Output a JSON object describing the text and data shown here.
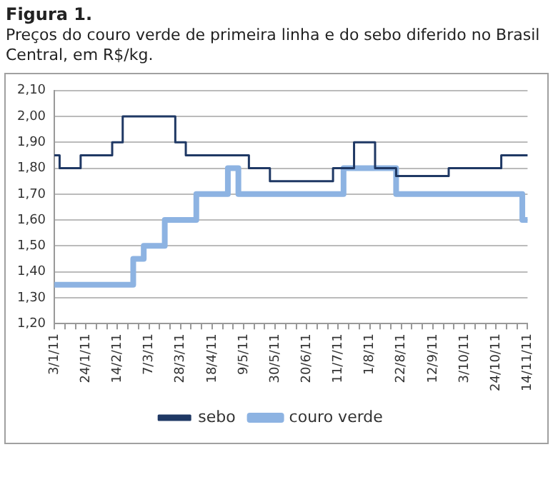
{
  "chart_data": {
    "type": "step",
    "title": "Figura 1.",
    "subtitle": "Preços do couro verde de primeira linha e do sebo diferido no Brasil Central, em R$/kg.",
    "categories": [
      "3/1/11",
      null,
      null,
      "24/1/11",
      null,
      null,
      "14/2/11",
      null,
      null,
      "7/3/11",
      null,
      null,
      "28/3/11",
      null,
      null,
      "18/4/11",
      null,
      null,
      "9/5/11",
      null,
      null,
      "30/5/11",
      null,
      null,
      "20/6/11",
      null,
      null,
      "11/7/11",
      null,
      null,
      "1/8/11",
      null,
      null,
      "22/8/11",
      null,
      null,
      "12/9/11",
      null,
      null,
      "3/10/11",
      null,
      null,
      "24/10/11",
      null,
      null,
      "14/11/11"
    ],
    "series": [
      {
        "name": "sebo",
        "color": "#1f3864",
        "values": [
          1.85,
          1.8,
          1.8,
          1.85,
          1.85,
          1.85,
          1.9,
          2.0,
          2.0,
          2.0,
          2.0,
          2.0,
          1.9,
          1.85,
          1.85,
          1.85,
          1.85,
          1.85,
          1.85,
          1.8,
          1.8,
          1.75,
          1.75,
          1.75,
          1.75,
          1.75,
          1.75,
          1.8,
          1.8,
          1.9,
          1.9,
          1.8,
          1.8,
          1.77,
          1.77,
          1.77,
          1.77,
          1.77,
          1.8,
          1.8,
          1.8,
          1.8,
          1.8,
          1.85,
          1.85,
          1.85
        ]
      },
      {
        "name": "couro verde",
        "color": "#8db3e2",
        "values": [
          1.35,
          1.35,
          1.35,
          1.35,
          1.35,
          1.35,
          1.35,
          1.35,
          1.45,
          1.5,
          1.5,
          1.6,
          1.6,
          1.6,
          1.7,
          1.7,
          1.7,
          1.8,
          1.7,
          1.7,
          1.7,
          1.7,
          1.7,
          1.7,
          1.7,
          1.7,
          1.7,
          1.7,
          1.8,
          1.8,
          1.8,
          1.8,
          1.8,
          1.7,
          1.7,
          1.7,
          1.7,
          1.7,
          1.7,
          1.7,
          1.7,
          1.7,
          1.7,
          1.7,
          1.7,
          1.6
        ]
      }
    ],
    "ylim": [
      1.2,
      2.1
    ],
    "yticks": [
      {
        "value": 1.2,
        "label": "1,20"
      },
      {
        "value": 1.3,
        "label": "1,30"
      },
      {
        "value": 1.4,
        "label": "1,40"
      },
      {
        "value": 1.5,
        "label": "1,50"
      },
      {
        "value": 1.6,
        "label": "1,60"
      },
      {
        "value": 1.7,
        "label": "1,70"
      },
      {
        "value": 1.8,
        "label": "1,80"
      },
      {
        "value": 1.9,
        "label": "1,90"
      },
      {
        "value": 2.0,
        "label": "2,00"
      },
      {
        "value": 2.1,
        "label": "2,10"
      }
    ],
    "grid": "y",
    "legend": "bottom"
  }
}
